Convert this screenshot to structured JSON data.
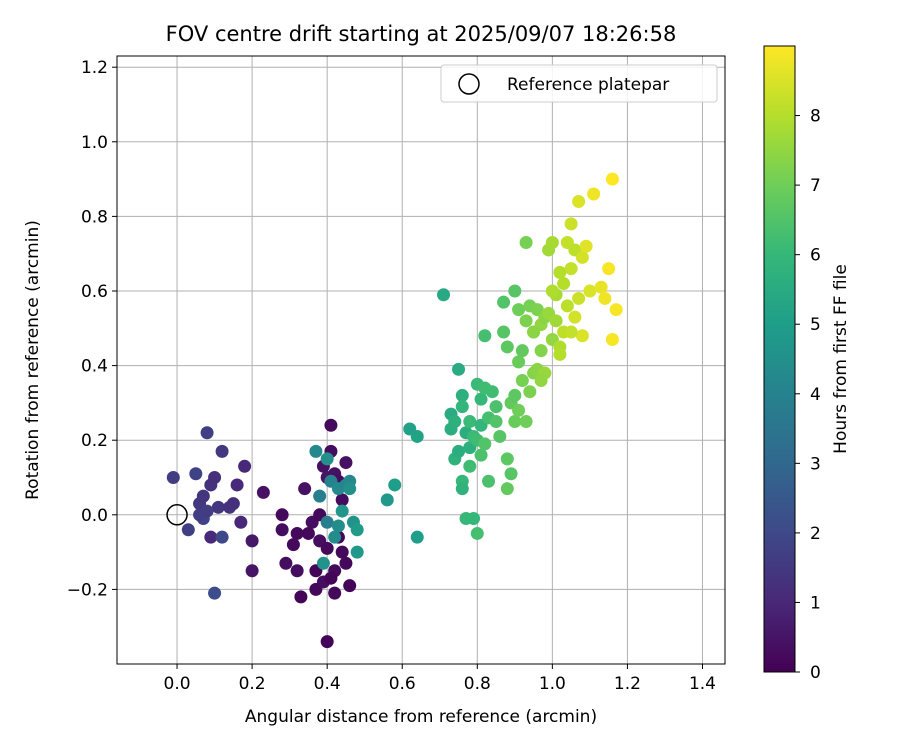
{
  "chart_data": {
    "type": "scatter",
    "title": "FOV centre drift starting at 2025/09/07 18:26:58",
    "xlabel": "Angular distance from reference (arcmin)",
    "ylabel": "Rotation from reference (arcmin)",
    "xlim": [
      -0.16,
      1.46
    ],
    "ylim": [
      -0.4,
      1.23
    ],
    "xticks": [
      "0.0",
      "0.2",
      "0.4",
      "0.6",
      "0.8",
      "1.0",
      "1.2",
      "1.4"
    ],
    "xtick_values": [
      0.0,
      0.2,
      0.4,
      0.6,
      0.8,
      1.0,
      1.2,
      1.4
    ],
    "yticks": [
      "−0.2",
      "0.0",
      "0.2",
      "0.4",
      "0.6",
      "0.8",
      "1.0",
      "1.2"
    ],
    "ytick_values": [
      -0.2,
      0.0,
      0.2,
      0.4,
      0.6,
      0.8,
      1.0,
      1.2
    ],
    "grid": true,
    "legend": {
      "label": "Reference platepar",
      "placement": "top-right",
      "marker": "open-circle"
    },
    "reference_point": {
      "x": 0.0,
      "y": 0.0
    },
    "colorbar": {
      "label": "Hours from first FF file",
      "colormap": "viridis",
      "range": [
        0,
        9
      ],
      "ticks": [
        "0",
        "1",
        "2",
        "3",
        "4",
        "5",
        "6",
        "7",
        "8"
      ],
      "tick_values": [
        0,
        1,
        2,
        3,
        4,
        5,
        6,
        7,
        8
      ]
    },
    "colormap_stops": [
      "#440154",
      "#482878",
      "#3e4989",
      "#31688e",
      "#26828e",
      "#1f9e89",
      "#35b779",
      "#6ece58",
      "#b5de2b",
      "#fde725"
    ],
    "points": [
      [
        -0.01,
        0.1,
        1.6
      ],
      [
        0.03,
        -0.04,
        1.7
      ],
      [
        0.05,
        0.11,
        1.8
      ],
      [
        0.06,
        0.03,
        1.5
      ],
      [
        0.07,
        0.05,
        1.4
      ],
      [
        0.065,
        0.0,
        1.6
      ],
      [
        0.08,
        0.22,
        1.7
      ],
      [
        0.07,
        -0.01,
        1.8
      ],
      [
        0.09,
        0.08,
        1.3
      ],
      [
        0.1,
        0.1,
        1.2
      ],
      [
        0.11,
        0.02,
        1.4
      ],
      [
        0.12,
        0.17,
        1.5
      ],
      [
        0.09,
        -0.06,
        1.1
      ],
      [
        0.12,
        -0.06,
        2.0
      ],
      [
        0.14,
        0.02,
        1.3
      ],
      [
        0.15,
        0.03,
        1.2
      ],
      [
        0.16,
        0.08,
        1.1
      ],
      [
        0.17,
        -0.02,
        1.0
      ],
      [
        0.18,
        0.13,
        1.0
      ],
      [
        0.2,
        -0.07,
        0.6
      ],
      [
        0.2,
        -0.15,
        0.5
      ],
      [
        0.23,
        0.06,
        0.4
      ],
      [
        0.1,
        -0.21,
        2.1
      ],
      [
        0.06,
        0.0,
        1.7
      ],
      [
        0.08,
        0.01,
        1.6
      ],
      [
        0.28,
        0.0,
        0.2
      ],
      [
        0.28,
        -0.04,
        0.3
      ],
      [
        0.29,
        -0.13,
        0.3
      ],
      [
        0.31,
        -0.08,
        0.2
      ],
      [
        0.32,
        -0.05,
        0.2
      ],
      [
        0.32,
        -0.15,
        0.3
      ],
      [
        0.33,
        -0.22,
        0.1
      ],
      [
        0.34,
        0.07,
        0.4
      ],
      [
        0.35,
        -0.05,
        0.2
      ],
      [
        0.36,
        -0.02,
        0.3
      ],
      [
        0.37,
        -0.15,
        0.1
      ],
      [
        0.37,
        -0.2,
        0.2
      ],
      [
        0.38,
        -0.07,
        0.3
      ],
      [
        0.38,
        0.0,
        0.2
      ],
      [
        0.39,
        -0.18,
        0.3
      ],
      [
        0.39,
        0.13,
        0.4
      ],
      [
        0.4,
        0.1,
        0.5
      ],
      [
        0.4,
        -0.09,
        0.2
      ],
      [
        0.4,
        -0.34,
        0.1
      ],
      [
        0.41,
        0.24,
        0.2
      ],
      [
        0.41,
        0.17,
        0.3
      ],
      [
        0.42,
        0.11,
        0.4
      ],
      [
        0.42,
        -0.15,
        0.2
      ],
      [
        0.43,
        0.09,
        0.3
      ],
      [
        0.43,
        -0.06,
        0.1
      ],
      [
        0.44,
        0.04,
        0.3
      ],
      [
        0.44,
        -0.1,
        0.2
      ],
      [
        0.45,
        0.14,
        0.4
      ],
      [
        0.45,
        -0.13,
        0.2
      ],
      [
        0.46,
        -0.19,
        0.1
      ],
      [
        0.41,
        -0.17,
        0.1
      ],
      [
        0.42,
        -0.21,
        0.2
      ],
      [
        0.38,
        0.05,
        3.9
      ],
      [
        0.37,
        0.17,
        4.2
      ],
      [
        0.39,
        -0.13,
        4.6
      ],
      [
        0.4,
        0.15,
        4.5
      ],
      [
        0.4,
        -0.02,
        3.8
      ],
      [
        0.41,
        0.09,
        4.0
      ],
      [
        0.42,
        -0.06,
        4.4
      ],
      [
        0.43,
        0.07,
        4.3
      ],
      [
        0.44,
        0.01,
        4.7
      ],
      [
        0.45,
        0.08,
        4.1
      ],
      [
        0.46,
        0.09,
        4.2
      ],
      [
        0.47,
        -0.02,
        4.6
      ],
      [
        0.48,
        -0.1,
        4.8
      ],
      [
        0.48,
        -0.04,
        4.9
      ],
      [
        0.46,
        0.07,
        4.5
      ],
      [
        0.43,
        -0.03,
        4.4
      ],
      [
        0.56,
        0.04,
        4.8
      ],
      [
        0.58,
        0.08,
        5.0
      ],
      [
        0.62,
        0.23,
        5.1
      ],
      [
        0.64,
        0.21,
        5.2
      ],
      [
        0.64,
        -0.06,
        5.0
      ],
      [
        0.71,
        0.59,
        5.4
      ],
      [
        0.73,
        0.23,
        5.6
      ],
      [
        0.73,
        0.27,
        5.5
      ],
      [
        0.74,
        0.25,
        5.7
      ],
      [
        0.74,
        0.15,
        5.8
      ],
      [
        0.75,
        0.17,
        5.6
      ],
      [
        0.75,
        0.39,
        5.5
      ],
      [
        0.76,
        0.32,
        5.7
      ],
      [
        0.76,
        0.29,
        5.9
      ],
      [
        0.76,
        0.09,
        6.0
      ],
      [
        0.76,
        0.07,
        5.8
      ],
      [
        0.77,
        -0.01,
        6.0
      ],
      [
        0.77,
        0.22,
        5.6
      ],
      [
        0.78,
        0.18,
        5.7
      ],
      [
        0.78,
        0.25,
        6.1
      ],
      [
        0.78,
        0.13,
        6.2
      ],
      [
        0.79,
        -0.01,
        6.0
      ],
      [
        0.79,
        0.21,
        6.1
      ],
      [
        0.8,
        0.2,
        6.2
      ],
      [
        0.8,
        -0.05,
        6.3
      ],
      [
        0.8,
        0.35,
        6.1
      ],
      [
        0.81,
        0.24,
        5.9
      ],
      [
        0.81,
        0.31,
        6.0
      ],
      [
        0.81,
        0.16,
        6.4
      ],
      [
        0.82,
        0.48,
        6.3
      ],
      [
        0.82,
        0.34,
        6.2
      ],
      [
        0.82,
        0.19,
        6.5
      ],
      [
        0.83,
        0.09,
        6.4
      ],
      [
        0.83,
        0.26,
        6.3
      ],
      [
        0.84,
        0.33,
        6.2
      ],
      [
        0.85,
        0.29,
        6.4
      ],
      [
        0.85,
        0.25,
        6.5
      ],
      [
        0.86,
        0.21,
        6.6
      ],
      [
        0.87,
        0.49,
        6.6
      ],
      [
        0.87,
        0.57,
        6.5
      ],
      [
        0.88,
        0.15,
        6.7
      ],
      [
        0.88,
        0.07,
        6.8
      ],
      [
        0.88,
        0.45,
        6.7
      ],
      [
        0.89,
        0.3,
        6.8
      ],
      [
        0.89,
        0.11,
        6.6
      ],
      [
        0.9,
        0.25,
        6.9
      ],
      [
        0.9,
        0.32,
        6.7
      ],
      [
        0.9,
        0.6,
        6.6
      ],
      [
        0.91,
        0.41,
        6.9
      ],
      [
        0.91,
        0.28,
        7.0
      ],
      [
        0.91,
        0.55,
        7.0
      ],
      [
        0.92,
        0.44,
        6.8
      ],
      [
        0.92,
        0.36,
        7.1
      ],
      [
        0.93,
        0.25,
        7.0
      ],
      [
        0.93,
        0.73,
        7.1
      ],
      [
        0.93,
        0.52,
        7.2
      ],
      [
        0.94,
        0.56,
        7.1
      ],
      [
        0.94,
        0.33,
        7.2
      ],
      [
        0.95,
        0.38,
        7.3
      ],
      [
        0.95,
        0.49,
        7.3
      ],
      [
        0.96,
        0.55,
        7.2
      ],
      [
        0.96,
        0.39,
        7.4
      ],
      [
        0.97,
        0.44,
        7.3
      ],
      [
        0.97,
        0.51,
        7.5
      ],
      [
        0.98,
        0.53,
        7.4
      ],
      [
        0.98,
        0.38,
        7.6
      ],
      [
        0.99,
        0.71,
        7.7
      ],
      [
        0.99,
        0.54,
        7.6
      ],
      [
        1.0,
        0.73,
        7.8
      ],
      [
        1.0,
        0.47,
        7.5
      ],
      [
        1.01,
        0.59,
        7.8
      ],
      [
        1.01,
        0.52,
        7.7
      ],
      [
        1.02,
        0.65,
        8.0
      ],
      [
        1.02,
        0.45,
        7.9
      ],
      [
        1.03,
        0.49,
        8.1
      ],
      [
        1.03,
        0.62,
        8.0
      ],
      [
        1.04,
        0.73,
        8.2
      ],
      [
        1.04,
        0.56,
        8.1
      ],
      [
        1.05,
        0.78,
        8.3
      ],
      [
        1.05,
        0.66,
        8.2
      ],
      [
        1.06,
        0.71,
        8.1
      ],
      [
        1.06,
        0.53,
        8.4
      ],
      [
        1.07,
        0.84,
        8.5
      ],
      [
        1.07,
        0.58,
        8.3
      ],
      [
        1.08,
        0.69,
        8.4
      ],
      [
        1.08,
        0.48,
        8.5
      ],
      [
        1.09,
        0.72,
        8.6
      ],
      [
        1.1,
        0.6,
        8.5
      ],
      [
        1.11,
        0.86,
        8.8
      ],
      [
        1.13,
        0.61,
        8.7
      ],
      [
        1.14,
        0.58,
        8.8
      ],
      [
        1.15,
        0.66,
        8.9
      ],
      [
        1.16,
        0.9,
        9.0
      ],
      [
        1.16,
        0.47,
        8.9
      ],
      [
        1.17,
        0.55,
        8.9
      ],
      [
        1.02,
        0.43,
        8.0
      ],
      [
        1.05,
        0.49,
        8.2
      ],
      [
        1.0,
        0.6,
        7.9
      ],
      [
        0.97,
        0.36,
        7.5
      ],
      [
        0.95,
        0.49,
        7.4
      ]
    ]
  }
}
